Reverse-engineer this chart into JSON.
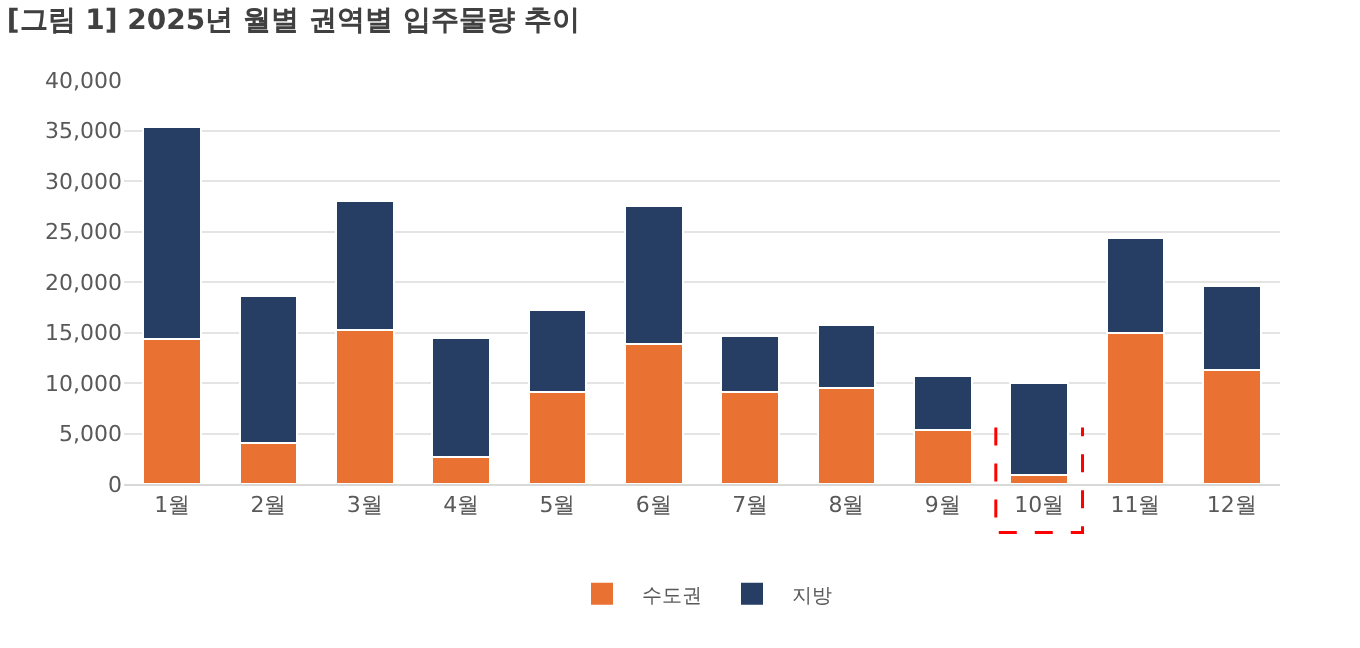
{
  "chart_data": {
    "type": "bar",
    "title": "[그림 1] 2025년 월별 권역별 입주물량 추이",
    "categories": [
      "1월",
      "2월",
      "3월",
      "4월",
      "5월",
      "6월",
      "7월",
      "8월",
      "9월",
      "10월",
      "11월",
      "12월"
    ],
    "series": [
      {
        "name": "수도권",
        "color": "#e97132",
        "values": [
          14400,
          4100,
          15200,
          2700,
          9100,
          13900,
          9100,
          9500,
          5300,
          900,
          15000,
          11300
        ]
      },
      {
        "name": "지방",
        "color": "#263d64",
        "values": [
          20900,
          14500,
          12800,
          11800,
          8100,
          13600,
          5600,
          6200,
          5400,
          9100,
          9400,
          8300
        ]
      }
    ],
    "stacked": true,
    "ylim": [
      0,
      40000
    ],
    "yticks": [
      {
        "value": 0,
        "label": "0"
      },
      {
        "value": 5000,
        "label": "5,000"
      },
      {
        "value": 10000,
        "label": "10,000"
      },
      {
        "value": 15000,
        "label": "15,000"
      },
      {
        "value": 20000,
        "label": "20,000"
      },
      {
        "value": 25000,
        "label": "25,000"
      },
      {
        "value": 30000,
        "label": "30,000"
      },
      {
        "value": 35000,
        "label": "35,000"
      },
      {
        "value": 40000,
        "label": "40,000"
      }
    ],
    "grid": "y",
    "legend": "bottom"
  }
}
